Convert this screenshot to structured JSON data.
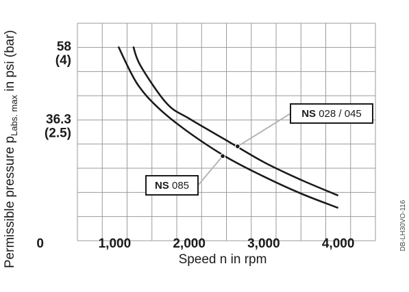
{
  "chart_data": {
    "type": "line",
    "xlabel": "Speed n in rpm",
    "ylabel": {
      "prefix": "Permissible pressure p",
      "subscript_L": "L",
      "subscript_abs": "abs. max",
      "suffix": " in psi (bar)"
    },
    "x_ticks": [
      "0",
      "1,000",
      "2,000",
      "3,000",
      "4,000"
    ],
    "x_tick_values": [
      0,
      1000,
      2000,
      3000,
      4000
    ],
    "y_ticks": [
      {
        "value": 58,
        "label": "58",
        "sublabel": "(4)"
      },
      {
        "value": 36.3,
        "label": "36.3",
        "sublabel": "(2.5)"
      }
    ],
    "xlim": [
      500,
      4500
    ],
    "ylim": [
      0,
      65
    ],
    "grid": true,
    "series": [
      {
        "name": "NS 085",
        "x": [
          1050,
          1300,
          1600,
          2000,
          2500,
          3000,
          3500,
          4000
        ],
        "y": [
          58,
          47,
          39.4,
          32.3,
          25,
          19.2,
          14.1,
          9.8
        ]
      },
      {
        "name": "NS 028 / 045",
        "x": [
          1250,
          1350,
          1700,
          2000,
          2500,
          3000,
          3500,
          4000
        ],
        "y": [
          58,
          52.2,
          41,
          36.5,
          30,
          23.5,
          18.2,
          13.5
        ]
      }
    ],
    "annotations": [
      {
        "series": "NS 028 / 045",
        "prefix": "NS",
        "label": "028 / 045",
        "at_x": 2650,
        "at_y": 28.2
      },
      {
        "series": "NS 085",
        "prefix": "NS",
        "label": "085",
        "at_x": 2450,
        "at_y": 25.3
      }
    ]
  },
  "watermark": "DB-LH30VO-116"
}
